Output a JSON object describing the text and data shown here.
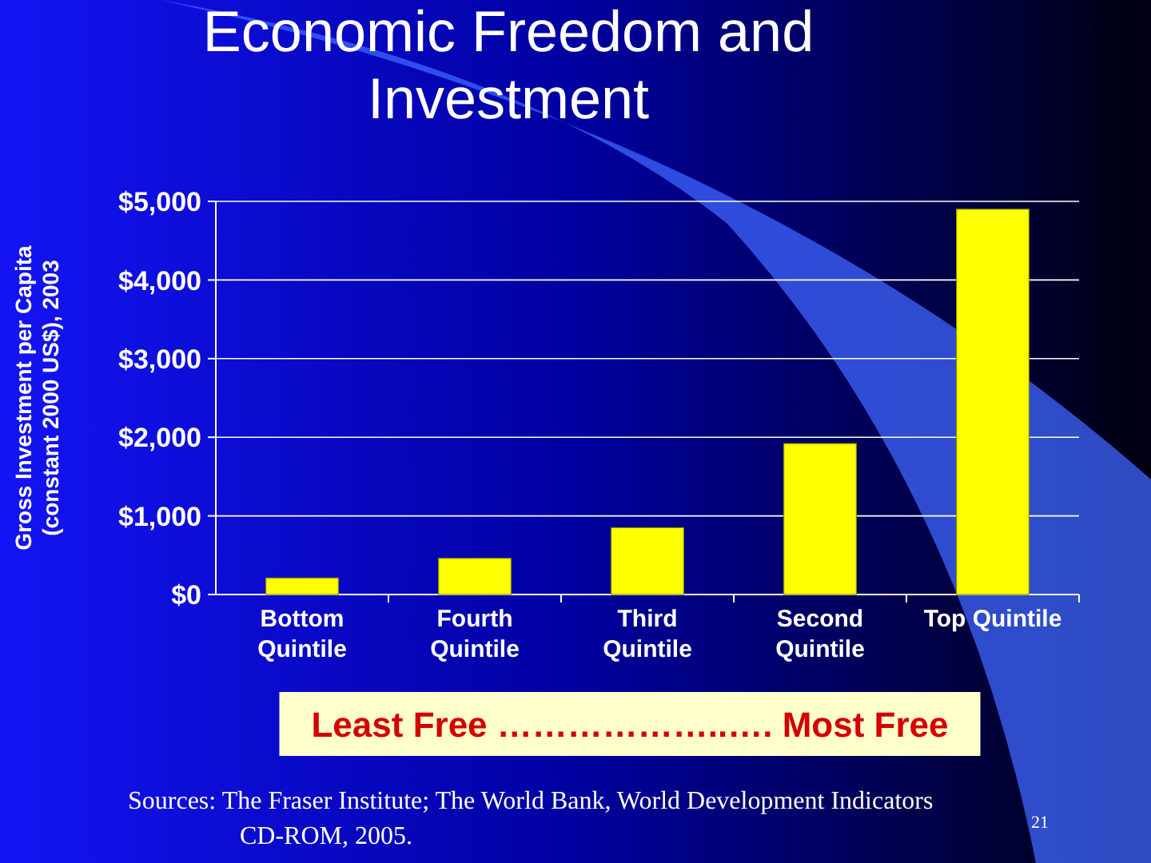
{
  "chart_data": {
    "type": "bar",
    "title": "Economic Freedom and Investment",
    "ylabel": "Gross Investment per Capita (constant 2000 US$), 2003",
    "categories": [
      "Bottom Quintile",
      "Fourth Quintile",
      "Third Quintile",
      "Second Quintile",
      "Top Quintile"
    ],
    "values": [
      210,
      460,
      850,
      1920,
      4900
    ],
    "color": "#ffff00",
    "ylim": [
      0,
      5000
    ],
    "yticks": [
      {
        "value": 0,
        "label": "$0"
      },
      {
        "value": 1000,
        "label": "$1,000"
      },
      {
        "value": 2000,
        "label": "$2,000"
      },
      {
        "value": 3000,
        "label": "$3,000"
      },
      {
        "value": 4000,
        "label": "$4,000"
      },
      {
        "value": 5000,
        "label": "$5,000"
      }
    ],
    "grid": "y",
    "annotations": [
      "Least Free ………………..…. Most Free",
      "Sources: The Fraser Institute; The World Bank, World Development Indicators CD-ROM, 2005.",
      "21"
    ]
  }
}
